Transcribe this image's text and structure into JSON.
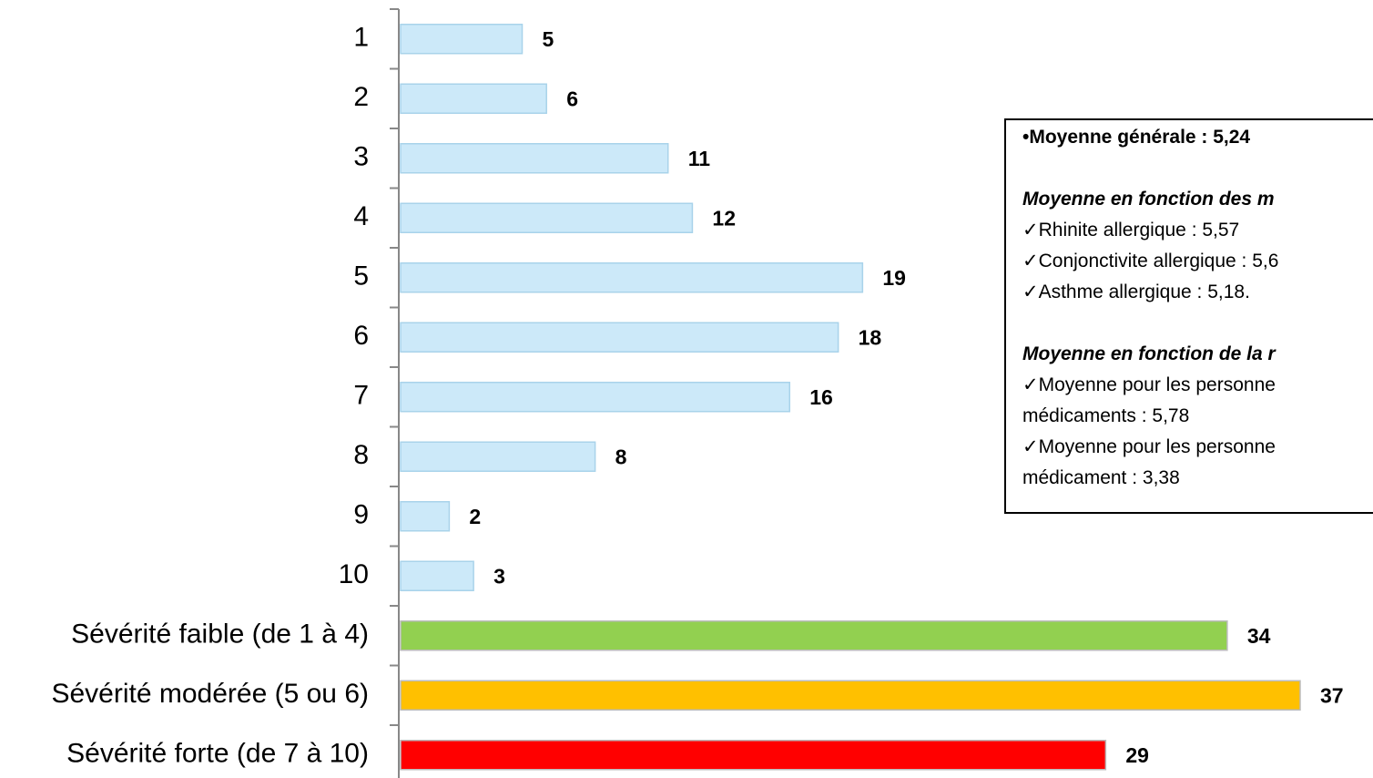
{
  "chart_data": {
    "type": "bar",
    "orientation": "horizontal",
    "categories": [
      "1",
      "2",
      "3",
      "4",
      "5",
      "6",
      "7",
      "8",
      "9",
      "10",
      "Sévérité faible (de 1 à 4)",
      "Sévérité modérée (5 ou 6)",
      "Sévérité forte (de 7 à 10)"
    ],
    "values": [
      5,
      6,
      11,
      12,
      19,
      18,
      16,
      8,
      2,
      3,
      34,
      37,
      29
    ],
    "colors": [
      "#cce9f9",
      "#cce9f9",
      "#cce9f9",
      "#cce9f9",
      "#cce9f9",
      "#cce9f9",
      "#cce9f9",
      "#cce9f9",
      "#cce9f9",
      "#cce9f9",
      "#92d050",
      "#ffc000",
      "#ff0000"
    ],
    "annotations": [
      "•Moyenne générale : 5,24",
      "Moyenne en fonction des m",
      "✓Rhinite allergique : 5,57",
      "✓Conjonctivite allergique : 5,6",
      "✓Asthme allergique : 5,18.",
      "Moyenne en fonction de la r",
      "✓Moyenne pour les personne",
      "médicaments : 5,78",
      "✓Moyenne pour les personne",
      "médicament : 3,38"
    ]
  }
}
